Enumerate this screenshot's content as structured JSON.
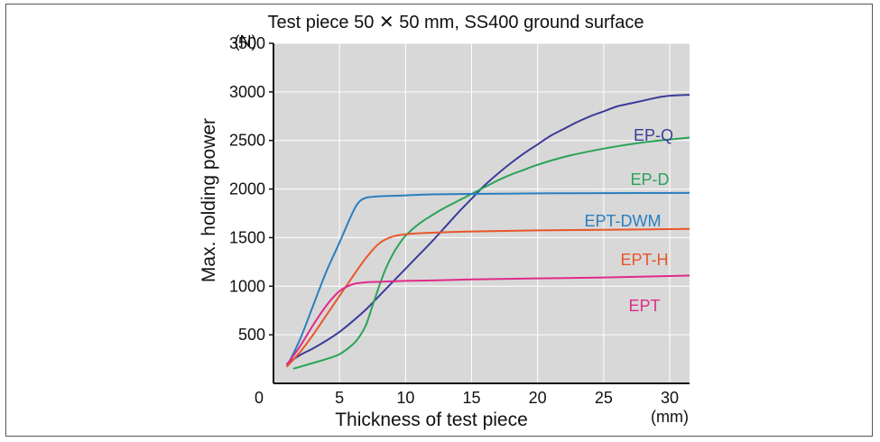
{
  "chart_data": {
    "type": "line",
    "title": "Test piece 50 ✕ 50 mm, SS400 ground surface",
    "xlabel": "Thickness of test piece",
    "ylabel": "Max. holding power",
    "x_unit": "(mm)",
    "y_unit": "(N)",
    "xlim": [
      0,
      31.5
    ],
    "ylim": [
      0,
      3500
    ],
    "x_ticks": [
      0,
      5,
      10,
      15,
      20,
      25,
      30
    ],
    "y_ticks": [
      500,
      1000,
      1500,
      2000,
      2500,
      3000,
      3500
    ],
    "grid": true,
    "series": [
      {
        "name": "EP-Q",
        "color": "#3b3b9a",
        "x": [
          1,
          2,
          3,
          4,
          5,
          6,
          7,
          8,
          9,
          10,
          11,
          12,
          13,
          14,
          15,
          16,
          17,
          18,
          19,
          20,
          21,
          22,
          23,
          24,
          25,
          26,
          27,
          28,
          29,
          30,
          31.5
        ],
        "values": [
          200,
          290,
          360,
          440,
          530,
          640,
          760,
          900,
          1040,
          1180,
          1320,
          1460,
          1610,
          1760,
          1900,
          2040,
          2160,
          2270,
          2370,
          2460,
          2550,
          2620,
          2690,
          2750,
          2800,
          2850,
          2880,
          2910,
          2940,
          2960,
          2970
        ]
      },
      {
        "name": "EP-D",
        "color": "#2aa356",
        "x": [
          1.5,
          2,
          3,
          4,
          5,
          6,
          6.5,
          7,
          7.5,
          8,
          8.5,
          9,
          9.5,
          10,
          11,
          12,
          13,
          14,
          15,
          16,
          17,
          18,
          19,
          20,
          22,
          24,
          26,
          28,
          30,
          31.5
        ],
        "values": [
          150,
          170,
          210,
          250,
          300,
          400,
          480,
          600,
          800,
          1000,
          1180,
          1320,
          1430,
          1520,
          1640,
          1730,
          1810,
          1880,
          1950,
          2020,
          2090,
          2150,
          2200,
          2250,
          2330,
          2390,
          2440,
          2480,
          2510,
          2530
        ]
      },
      {
        "name": "EPT-DWM",
        "color": "#2a7fc0",
        "x": [
          1,
          2,
          3,
          4,
          5,
          6,
          6.5,
          7,
          7.5,
          8,
          9,
          10,
          12,
          15,
          20,
          25,
          31.5
        ],
        "values": [
          170,
          450,
          800,
          1150,
          1450,
          1760,
          1870,
          1910,
          1920,
          1925,
          1930,
          1935,
          1945,
          1950,
          1955,
          1958,
          1960
        ]
      },
      {
        "name": "EPT-H",
        "color": "#e8572a",
        "x": [
          1,
          2,
          3,
          4,
          5,
          6,
          7,
          8,
          9,
          10,
          11,
          12,
          14,
          16,
          20,
          25,
          31.5
        ],
        "values": [
          170,
          320,
          500,
          700,
          900,
          1100,
          1290,
          1440,
          1510,
          1535,
          1545,
          1550,
          1560,
          1565,
          1575,
          1580,
          1590
        ]
      },
      {
        "name": "EPT",
        "color": "#df2a8a",
        "x": [
          1,
          2,
          3,
          4,
          5,
          6,
          7,
          8,
          9,
          10,
          12,
          15,
          20,
          25,
          31.5
        ],
        "values": [
          190,
          380,
          600,
          800,
          950,
          1020,
          1040,
          1045,
          1050,
          1055,
          1060,
          1070,
          1080,
          1090,
          1110
        ]
      }
    ]
  }
}
